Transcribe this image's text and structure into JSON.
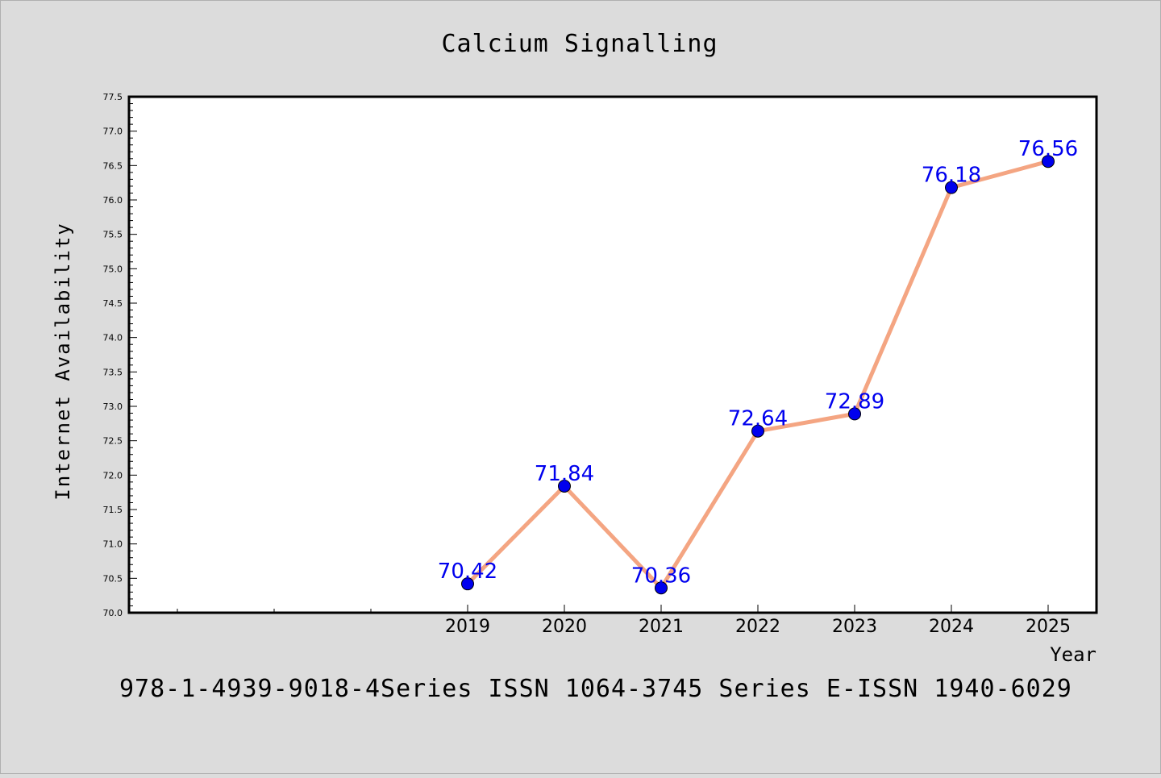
{
  "chart_data": {
    "type": "line",
    "title": "Calcium Signalling",
    "xlabel": "Year",
    "ylabel": "Internet Availability",
    "x": [
      "2019",
      "2020",
      "2021",
      "2022",
      "2023",
      "2024",
      "2025"
    ],
    "series": [
      {
        "values": [
          70.42,
          71.84,
          70.36,
          72.64,
          72.89,
          76.18,
          76.56
        ],
        "labels": [
          "70.42",
          "71.84",
          "70.36",
          "72.64",
          "72.89",
          "76.18",
          "76.56"
        ]
      }
    ],
    "ylim": [
      70.0,
      77.5
    ],
    "yticks": [
      "70.0",
      "70.5",
      "71.0",
      "71.5",
      "72.0",
      "72.5",
      "73.0",
      "73.5",
      "74.0",
      "74.5",
      "75.0",
      "75.5",
      "76.0",
      "76.5",
      "77.0",
      "77.5"
    ],
    "grid": false,
    "line_color": "#f4a582",
    "marker_color": "#0000ee",
    "label_color": "#0000ee"
  },
  "footer": "978-1-4939-9018-4Series ISSN 1064-3745 Series E-ISSN 1940-6029"
}
